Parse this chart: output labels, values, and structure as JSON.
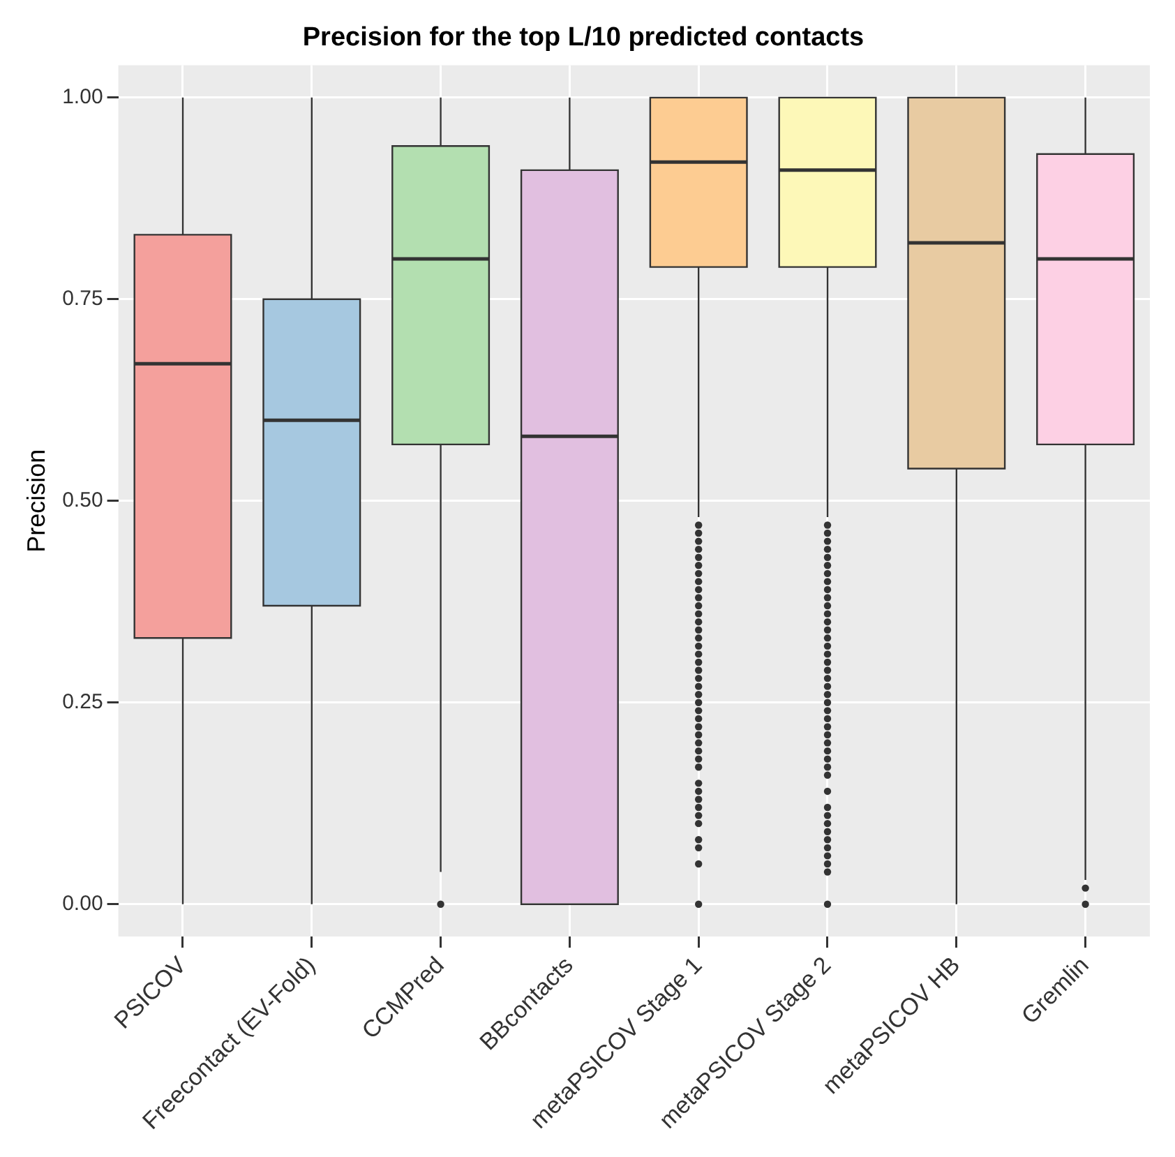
{
  "chart_data": {
    "type": "box",
    "title": "Precision for the top L/10 predicted contacts",
    "ylabel": "Precision",
    "categories": [
      "PSICOV",
      "Freecontact (EV-Fold)",
      "CCMPred",
      "BBcontacts",
      "metaPSICOV Stage 1",
      "metaPSICOV Stage 2",
      "metaPSICOV HB",
      "Gremlin"
    ],
    "colors": [
      "#f4a09c",
      "#a6c8e0",
      "#b3dfb0",
      "#e1bfe0",
      "#fdcc92",
      "#fdf8b8",
      "#e8cba2",
      "#fdd0e4"
    ],
    "boxes": [
      {
        "low": 0,
        "q1": 0.33,
        "median": 0.67,
        "q3": 0.83,
        "high": 1
      },
      {
        "low": 0,
        "q1": 0.37,
        "median": 0.6,
        "q3": 0.75,
        "high": 1
      },
      {
        "low": 0.04,
        "q1": 0.57,
        "median": 0.8,
        "q3": 0.94,
        "high": 1,
        "outliers": [
          0
        ]
      },
      {
        "low": 0,
        "q1": 0,
        "median": 0.58,
        "q3": 0.91,
        "high": 1
      },
      {
        "low": 0.48,
        "q1": 0.79,
        "median": 0.92,
        "q3": 1,
        "high": 1,
        "outliers": [
          0.47,
          0.46,
          0.45,
          0.44,
          0.43,
          0.42,
          0.41,
          0.4,
          0.39,
          0.38,
          0.37,
          0.36,
          0.35,
          0.34,
          0.33,
          0.32,
          0.31,
          0.3,
          0.29,
          0.28,
          0.27,
          0.26,
          0.25,
          0.24,
          0.23,
          0.22,
          0.21,
          0.2,
          0.19,
          0.18,
          0.17,
          0.15,
          0.14,
          0.13,
          0.12,
          0.11,
          0.1,
          0.08,
          0.07,
          0.05,
          0
        ]
      },
      {
        "low": 0.48,
        "q1": 0.79,
        "median": 0.91,
        "q3": 1,
        "high": 1,
        "outliers": [
          0.47,
          0.46,
          0.45,
          0.44,
          0.43,
          0.42,
          0.41,
          0.4,
          0.39,
          0.38,
          0.37,
          0.36,
          0.35,
          0.34,
          0.33,
          0.32,
          0.31,
          0.3,
          0.29,
          0.28,
          0.27,
          0.26,
          0.25,
          0.24,
          0.23,
          0.22,
          0.21,
          0.2,
          0.19,
          0.18,
          0.17,
          0.16,
          0.14,
          0.12,
          0.11,
          0.1,
          0.09,
          0.08,
          0.07,
          0.06,
          0.05,
          0.04,
          0
        ]
      },
      {
        "low": 0,
        "q1": 0.54,
        "median": 0.82,
        "q3": 1,
        "high": 1
      },
      {
        "low": 0.03,
        "q1": 0.57,
        "median": 0.8,
        "q3": 0.93,
        "high": 1,
        "outliers": [
          0.02,
          0
        ]
      }
    ],
    "ylim": [
      -0.04,
      1.04
    ],
    "yticks": [
      {
        "value": 0,
        "label": "0.00"
      },
      {
        "value": 0.25,
        "label": "0.25"
      },
      {
        "value": 0.5,
        "label": "0.50"
      },
      {
        "value": 0.75,
        "label": "0.75"
      },
      {
        "value": 1,
        "label": "1.00"
      }
    ],
    "grid": true
  }
}
